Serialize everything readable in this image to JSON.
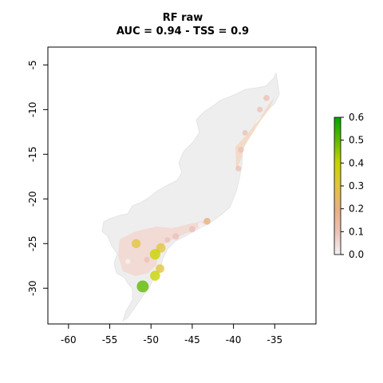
{
  "title": [
    "RF raw",
    "AUC = 0.94 - TSS = 0.9"
  ],
  "map": {
    "x_range": [
      -62.5,
      -30
    ],
    "y_range": [
      -34,
      -3
    ],
    "x_ticks": [
      -60,
      -55,
      -50,
      -45,
      -40,
      -35
    ],
    "x_tick_labels": [
      "-60",
      "-55",
      "-50",
      "-45",
      "-40",
      "-35"
    ],
    "y_ticks": [
      -5,
      -10,
      -15,
      -20,
      -25,
      -30
    ],
    "y_tick_labels": [
      "-5",
      "-10",
      "-15",
      "-20",
      "-25",
      "-30"
    ],
    "background_color": "#eeeeee",
    "hotspots": [
      {
        "lon": -36.0,
        "lat": -8.7,
        "value": 0.15
      },
      {
        "lon": -36.8,
        "lat": -10.0,
        "value": 0.12
      },
      {
        "lon": -38.6,
        "lat": -12.6,
        "value": 0.1
      },
      {
        "lon": -39.1,
        "lat": -14.5,
        "value": 0.14
      },
      {
        "lon": -39.4,
        "lat": -16.6,
        "value": 0.12
      },
      {
        "lon": -43.2,
        "lat": -22.5,
        "value": 0.2
      },
      {
        "lon": -45.0,
        "lat": -23.4,
        "value": 0.16
      },
      {
        "lon": -47.0,
        "lat": -24.2,
        "value": 0.18
      },
      {
        "lon": -48.8,
        "lat": -25.5,
        "value": 0.38
      },
      {
        "lon": -49.5,
        "lat": -26.2,
        "value": 0.45
      },
      {
        "lon": -48.9,
        "lat": -27.8,
        "value": 0.32
      },
      {
        "lon": -51.8,
        "lat": -25.0,
        "value": 0.35
      },
      {
        "lon": -49.5,
        "lat": -28.6,
        "value": 0.42
      },
      {
        "lon": -51.0,
        "lat": -29.8,
        "value": 0.55
      },
      {
        "lon": -52.8,
        "lat": -27.0,
        "value": 0.08
      },
      {
        "lon": -50.5,
        "lat": -26.8,
        "value": 0.12
      },
      {
        "lon": -48.0,
        "lat": -24.6,
        "value": 0.1
      },
      {
        "lon": -44.0,
        "lat": -22.9,
        "value": 0.09
      }
    ]
  },
  "legend": {
    "ticks": [
      0.6,
      0.5,
      0.4,
      0.3,
      0.2,
      0.1,
      0.0
    ],
    "tick_labels": [
      "0.6",
      "0.5",
      "0.4",
      "0.3",
      "0.2",
      "0.1",
      "0.0"
    ],
    "range": [
      0,
      0.6
    ],
    "color_stops": [
      {
        "value": 0.0,
        "color": "#f2f2f2"
      },
      {
        "value": 0.1,
        "color": "#ecc1b6"
      },
      {
        "value": 0.2,
        "color": "#e6b180"
      },
      {
        "value": 0.3,
        "color": "#e2c53e"
      },
      {
        "value": 0.4,
        "color": "#c8d400"
      },
      {
        "value": 0.5,
        "color": "#5fba00"
      },
      {
        "value": 0.6,
        "color": "#00a600"
      }
    ]
  }
}
